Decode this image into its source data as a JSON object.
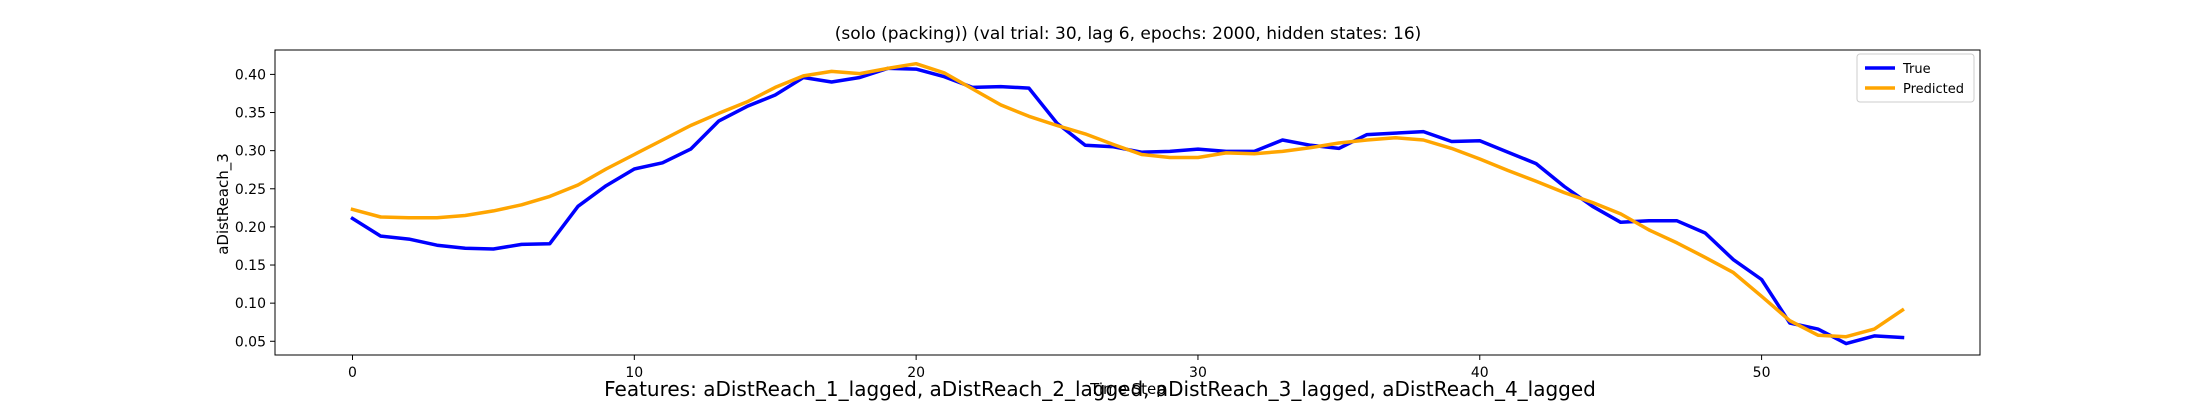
{
  "chart_data": {
    "type": "line",
    "title": "(solo (packing)) (val trial: 30, lag 6, epochs: 2000, hidden states: 16)",
    "xlabel": "Time Step",
    "ylabel": "aDistReach_3",
    "xlim": [
      -2.75,
      57.75
    ],
    "ylim": [
      0.032,
      0.432
    ],
    "xticks": [
      0,
      10,
      20,
      30,
      40,
      50
    ],
    "yticks": [
      0.05,
      0.1,
      0.15,
      0.2,
      0.25,
      0.3,
      0.35,
      0.4
    ],
    "legend": {
      "placement": "top-right"
    },
    "grid": false,
    "series": [
      {
        "name": "True",
        "color": "#0000ff",
        "x": [
          0,
          1,
          2,
          3,
          4,
          5,
          6,
          7,
          8,
          9,
          10,
          11,
          12,
          13,
          14,
          15,
          16,
          17,
          18,
          19,
          20,
          21,
          22,
          23,
          24,
          25,
          26,
          27,
          28,
          29,
          30,
          31,
          32,
          33,
          34,
          35,
          36,
          37,
          38,
          39,
          40,
          41,
          42,
          43,
          44,
          45,
          46,
          47,
          48,
          49,
          50,
          51,
          52,
          53,
          54,
          55
        ],
        "values": [
          0.211,
          0.188,
          0.184,
          0.176,
          0.172,
          0.171,
          0.177,
          0.178,
          0.227,
          0.254,
          0.276,
          0.284,
          0.302,
          0.339,
          0.358,
          0.373,
          0.396,
          0.39,
          0.396,
          0.408,
          0.407,
          0.397,
          0.383,
          0.384,
          0.382,
          0.336,
          0.307,
          0.305,
          0.298,
          0.299,
          0.302,
          0.299,
          0.299,
          0.314,
          0.307,
          0.303,
          0.321,
          0.323,
          0.325,
          0.312,
          0.313,
          0.298,
          0.283,
          0.253,
          0.227,
          0.206,
          0.208,
          0.208,
          0.192,
          0.157,
          0.131,
          0.074,
          0.066,
          0.047,
          0.057,
          0.055
        ]
      },
      {
        "name": "Predicted",
        "color": "#ffa500",
        "x": [
          0,
          1,
          2,
          3,
          4,
          5,
          6,
          7,
          8,
          9,
          10,
          11,
          12,
          13,
          14,
          15,
          16,
          17,
          18,
          19,
          20,
          21,
          22,
          23,
          24,
          25,
          26,
          27,
          28,
          29,
          30,
          31,
          32,
          33,
          34,
          35,
          36,
          37,
          38,
          39,
          40,
          41,
          42,
          43,
          44,
          45,
          46,
          47,
          48,
          49,
          50,
          51,
          52,
          53,
          54,
          55
        ],
        "values": [
          0.223,
          0.213,
          0.212,
          0.212,
          0.215,
          0.221,
          0.229,
          0.24,
          0.255,
          0.276,
          0.295,
          0.314,
          0.333,
          0.349,
          0.364,
          0.383,
          0.398,
          0.404,
          0.401,
          0.408,
          0.414,
          0.402,
          0.381,
          0.36,
          0.345,
          0.333,
          0.322,
          0.308,
          0.295,
          0.291,
          0.291,
          0.297,
          0.296,
          0.299,
          0.304,
          0.31,
          0.314,
          0.317,
          0.314,
          0.303,
          0.289,
          0.274,
          0.26,
          0.245,
          0.232,
          0.217,
          0.196,
          0.179,
          0.16,
          0.14,
          0.109,
          0.077,
          0.058,
          0.056,
          0.066,
          0.091
        ]
      }
    ]
  },
  "footer": {
    "features_text": "Features: aDistReach_1_lagged, aDistReach_2_lagged, aDistReach_3_lagged, aDistReach_4_lagged"
  }
}
